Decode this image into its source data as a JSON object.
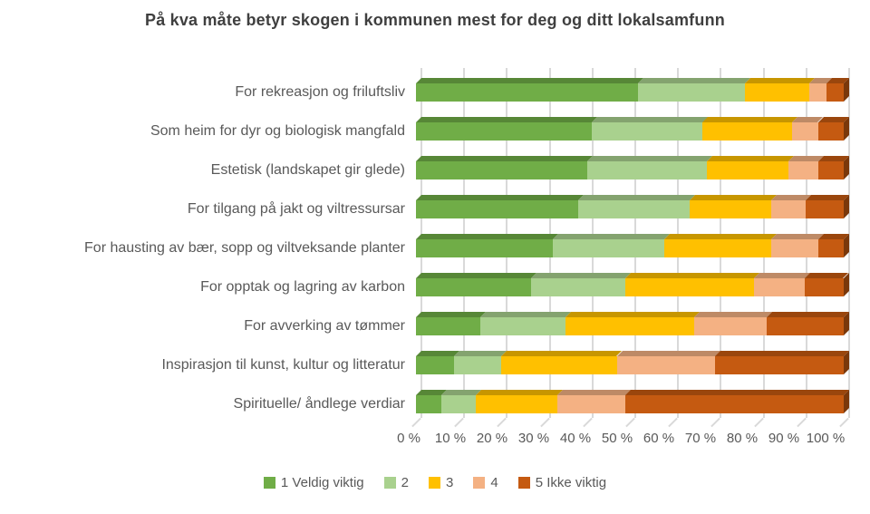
{
  "title": "På kva måte betyr skogen i kommunen mest for deg og ditt lokalsamfunn",
  "text_color": "#595959",
  "title_color": "#3f3f3f",
  "gridline_color": "#d9d9d9",
  "chart_data": {
    "type": "bar",
    "orientation": "horizontal",
    "stacked": true,
    "grid": true,
    "legend_position": "bottom",
    "xlim": [
      0,
      100
    ],
    "x_ticks": [
      "0 %",
      "10 %",
      "20 %",
      "30 %",
      "40 %",
      "50 %",
      "60 %",
      "70 %",
      "80 %",
      "90 %",
      "100 %"
    ],
    "categories": [
      "For rekreasjon og friluftsliv",
      "Som heim for dyr og biologisk mangfald",
      "Estetisk (landskapet gir glede)",
      "For tilgang på jakt og viltressursar",
      "For hausting av bær, sopp og viltveksande planter",
      "For opptak og lagring av karbon",
      "For avverking av tømmer",
      "Inspirasjon til kunst, kultur og litteratur",
      "Spirituelle/ åndlege verdiar"
    ],
    "series": [
      {
        "name": "1 Veldig viktig",
        "color": "#70AD47",
        "values": [
          52,
          41,
          40,
          38,
          32,
          27,
          15,
          9,
          6
        ]
      },
      {
        "name": "2",
        "color": "#A9D18E",
        "values": [
          25,
          26,
          28,
          26,
          26,
          22,
          20,
          11,
          8
        ]
      },
      {
        "name": "3",
        "color": "#FFC000",
        "values": [
          15,
          21,
          19,
          19,
          25,
          30,
          30,
          27,
          19
        ]
      },
      {
        "name": "4",
        "color": "#F4B183",
        "values": [
          4,
          6,
          7,
          8,
          11,
          12,
          17,
          23,
          16
        ]
      },
      {
        "name": "5 Ikke viktig",
        "color": "#C55A11",
        "values": [
          4,
          6,
          6,
          9,
          6,
          9,
          18,
          30,
          51
        ]
      }
    ]
  }
}
